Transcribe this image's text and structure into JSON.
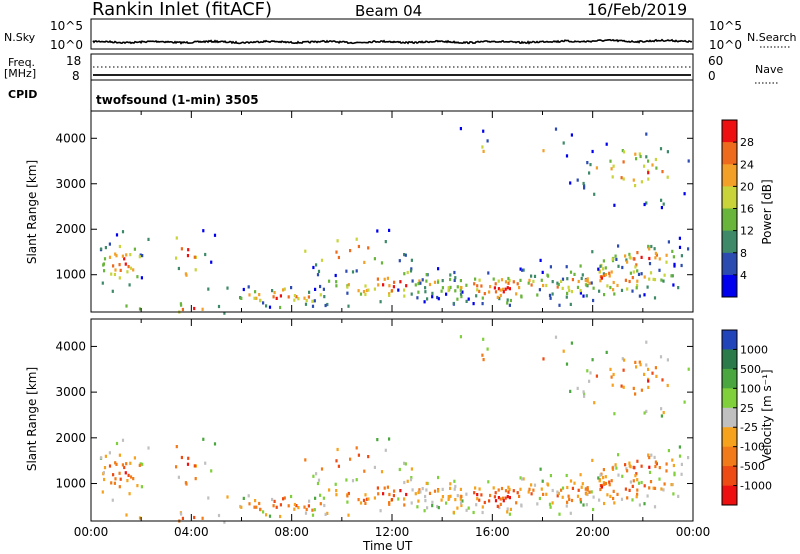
{
  "header": {
    "station": "Rankin Inlet (fitACF)",
    "beam": "Beam 04",
    "date": "16/Feb/2019"
  },
  "top_panels": {
    "nsky_label": "N.Sky",
    "nsky_ticks": [
      "10^5",
      "10^0"
    ],
    "nsearch_label": "N.Search",
    "freq_label": [
      "Freq.",
      "[MHz]"
    ],
    "freq_ticks": [
      "18",
      "8"
    ],
    "nave_label": "Nave",
    "nave_ticks": [
      "60",
      "0"
    ],
    "cpid_label": "CPID",
    "cpid_value": "twofsound (1-min) 3505"
  },
  "chart_data": [
    {
      "type": "heatmap",
      "parameter": "Power",
      "ylabel": "Slant Range [km]",
      "ylim": [
        180,
        4600
      ],
      "yticks": [
        "1000",
        "2000",
        "3000",
        "4000"
      ],
      "colorbar_label": "Power [dB]",
      "colorbar_ticks": [
        "28",
        "24",
        "20",
        "16",
        "12",
        "8",
        "4"
      ],
      "colors": [
        "#0000ee",
        "#2c4bb0",
        "#3e8a68",
        "#69b53b",
        "#c8d43a",
        "#f3a028",
        "#ee6a1c",
        "#ee1010"
      ]
    },
    {
      "type": "heatmap",
      "parameter": "Velocity",
      "xlabel": "Time UT",
      "ylabel": "Slant Range [km]",
      "ylim": [
        180,
        4600
      ],
      "xlim": [
        "00:00",
        "24:00"
      ],
      "xticks": [
        "00:00",
        "04:00",
        "08:00",
        "12:00",
        "16:00",
        "20:00",
        "00:00"
      ],
      "yticks": [
        "1000",
        "2000",
        "3000",
        "4000"
      ],
      "colorbar_label": "Velocity [m s⁻¹]",
      "colorbar_ticks": [
        "1000",
        "500",
        "100",
        "25",
        "-25",
        "-100",
        "-500",
        "-1000"
      ],
      "colors": [
        "#2244bb",
        "#2b7a4a",
        "#4aa63e",
        "#7fd03a",
        "#c0c0c0",
        "#f6a21c",
        "#f27a18",
        "#ee4a14",
        "#ee1010"
      ]
    }
  ]
}
